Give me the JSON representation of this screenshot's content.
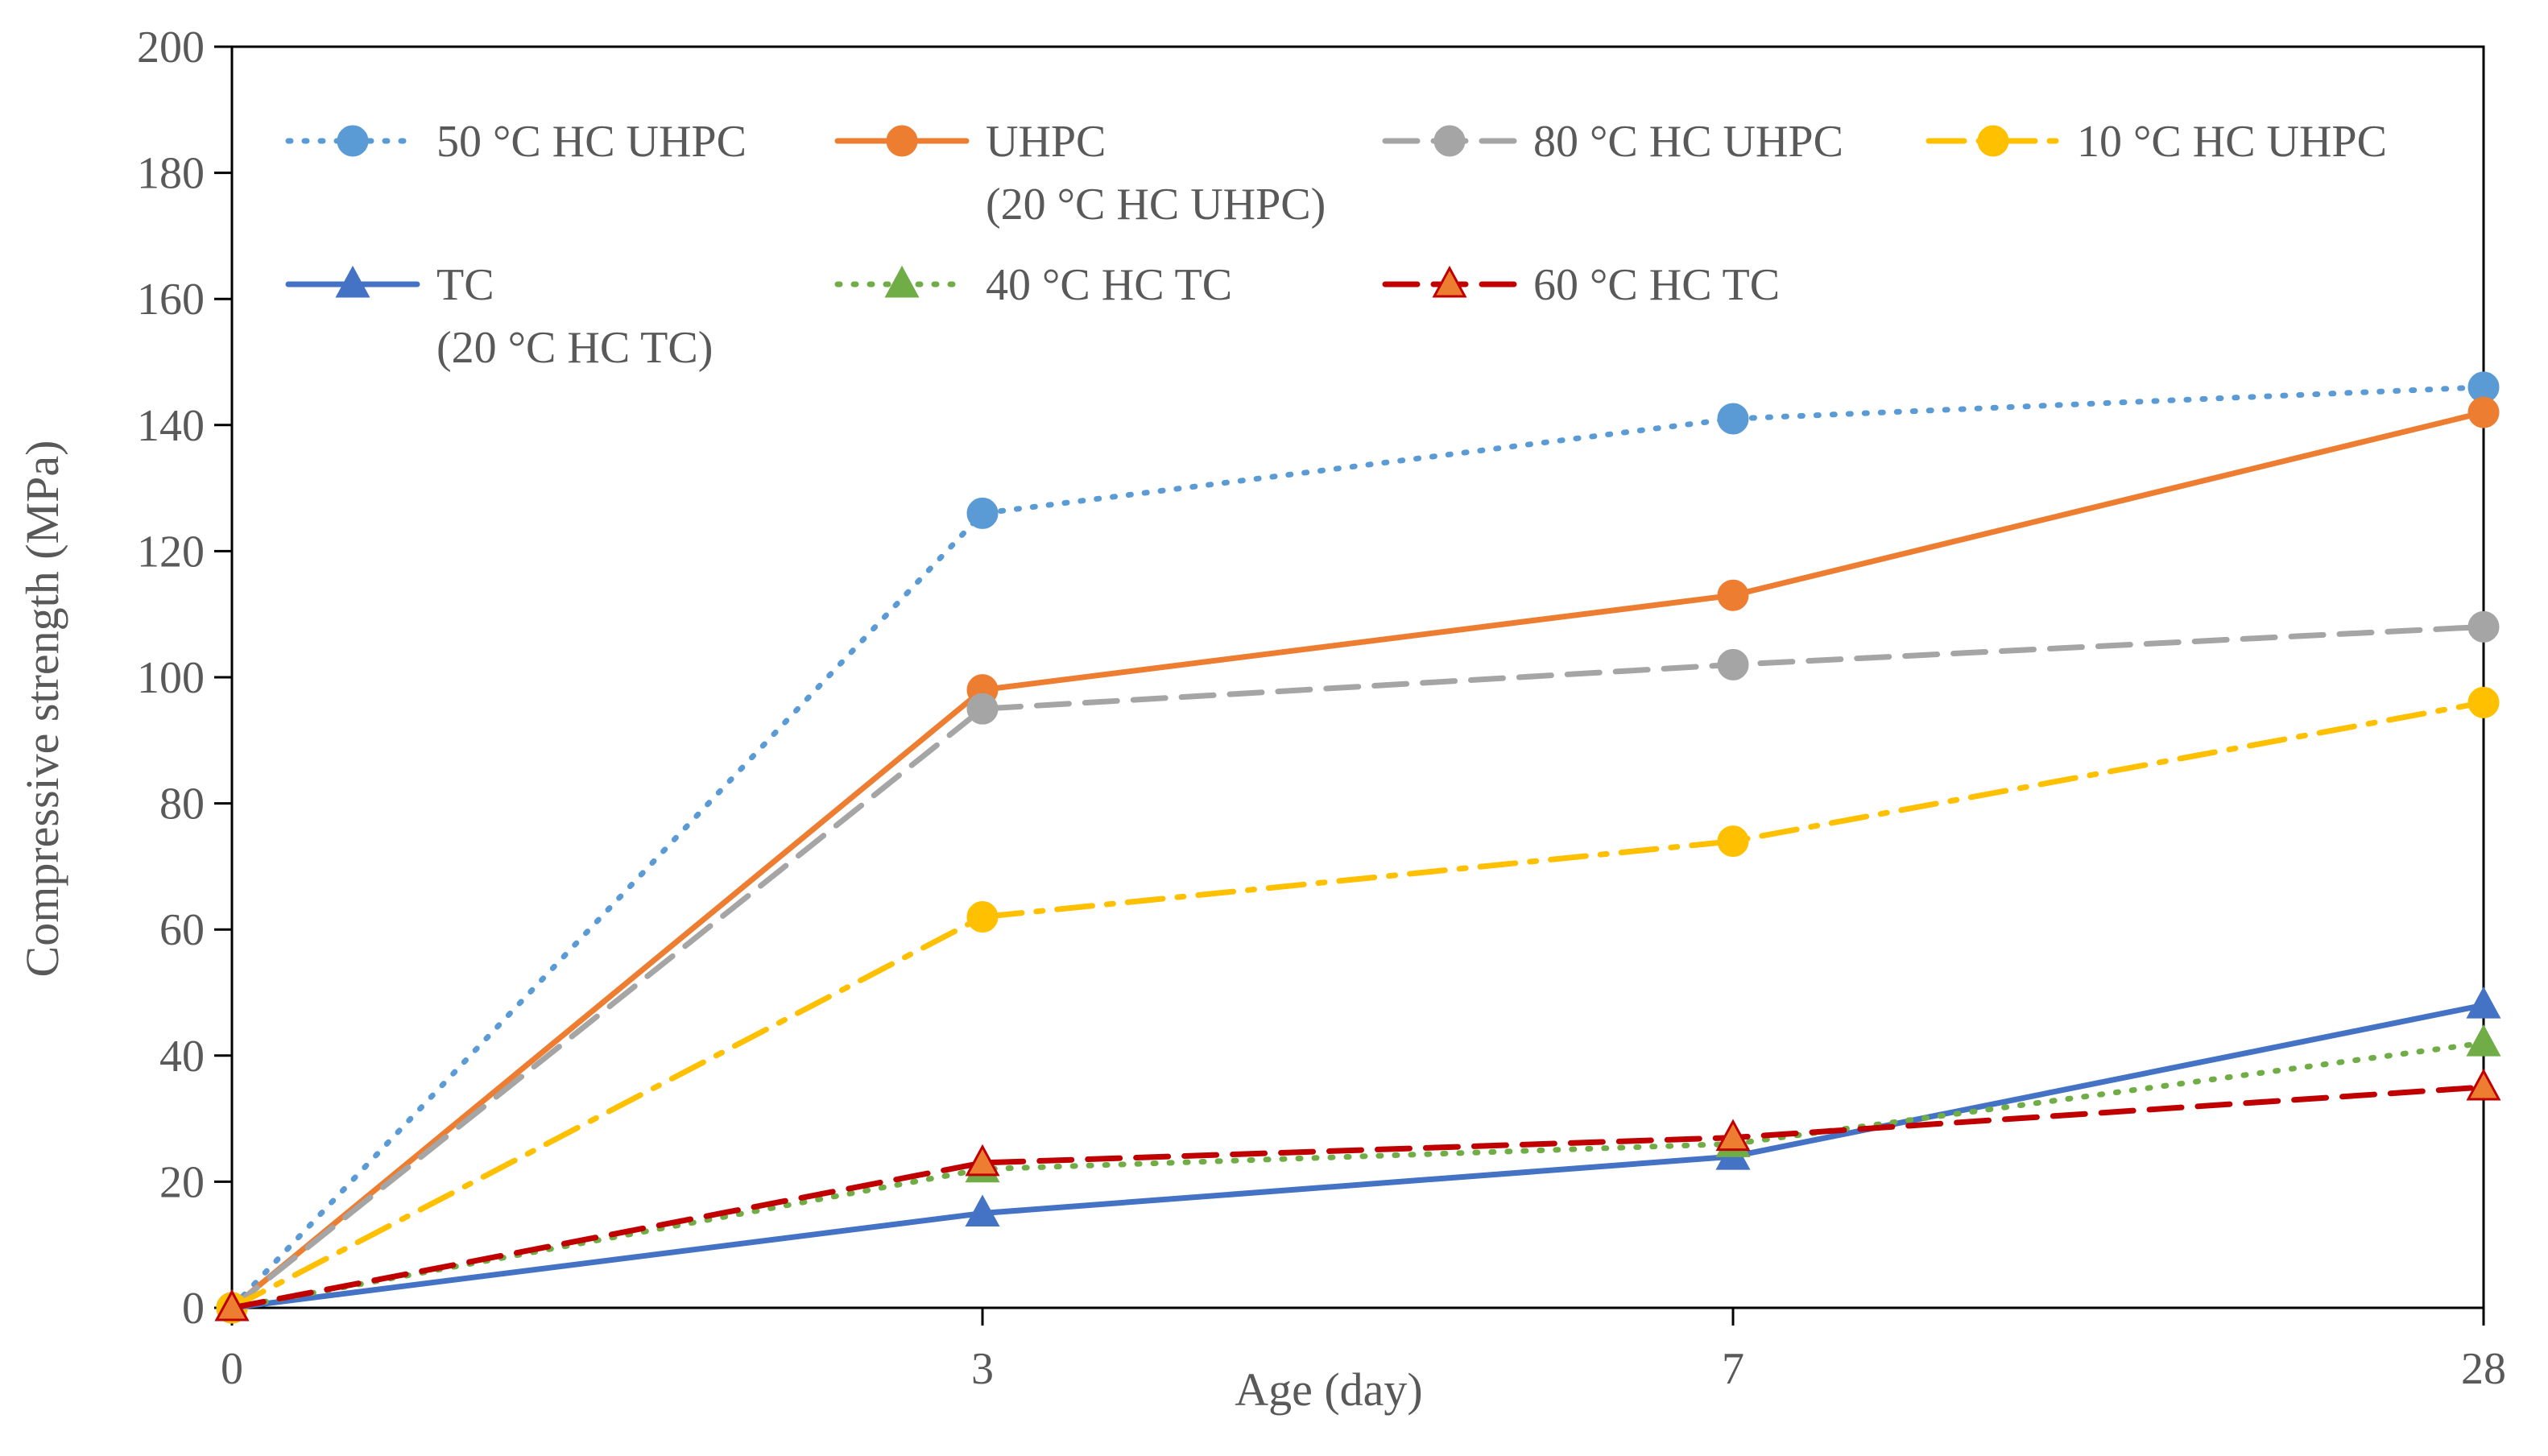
{
  "chart_data": {
    "type": "line",
    "title": "",
    "xlabel": "Age (day)",
    "ylabel": "Compressive  strength  (MPa)",
    "categories": [
      "0",
      "3",
      "7",
      "28"
    ],
    "ylim": [
      0,
      200
    ],
    "yticks": [
      "0",
      "20",
      "40",
      "60",
      "80",
      "100",
      "120",
      "140",
      "160",
      "180",
      "200"
    ],
    "grid": false,
    "legend_position": "top",
    "series": [
      {
        "name": "50 °C HC UHPC",
        "name_line2": "",
        "values": [
          0,
          126,
          141,
          146
        ],
        "color": "#5B9BD5",
        "dash": "dot",
        "marker": "circle"
      },
      {
        "name": "UHPC",
        "name_line2": "(20 °C HC UHPC)",
        "values": [
          0,
          98,
          113,
          142
        ],
        "color": "#ED7D31",
        "dash": "solid",
        "marker": "circle"
      },
      {
        "name": "80 °C HC UHPC",
        "name_line2": "",
        "values": [
          0,
          95,
          102,
          108
        ],
        "color": "#A5A5A5",
        "dash": "dash",
        "marker": "circle"
      },
      {
        "name": "10 °C HC UHPC",
        "name_line2": "",
        "values": [
          0,
          62,
          74,
          96
        ],
        "color": "#FFC000",
        "dash": "dashdot",
        "marker": "circle"
      },
      {
        "name": "TC",
        "name_line2": "(20 °C HC TC)",
        "values": [
          0,
          15,
          24,
          48
        ],
        "color": "#4472C4",
        "dash": "solid",
        "marker": "triangle"
      },
      {
        "name": "40 °C HC TC",
        "name_line2": "",
        "values": [
          0,
          22,
          26,
          42
        ],
        "color": "#70AD47",
        "dash": "dot",
        "marker": "triangle"
      },
      {
        "name": "60 °C HC TC",
        "name_line2": "",
        "values": [
          0,
          23,
          27,
          35
        ],
        "color": "#C00000",
        "dash": "dash",
        "marker": "triangle",
        "marker_fill": "#ED7D31"
      }
    ]
  }
}
